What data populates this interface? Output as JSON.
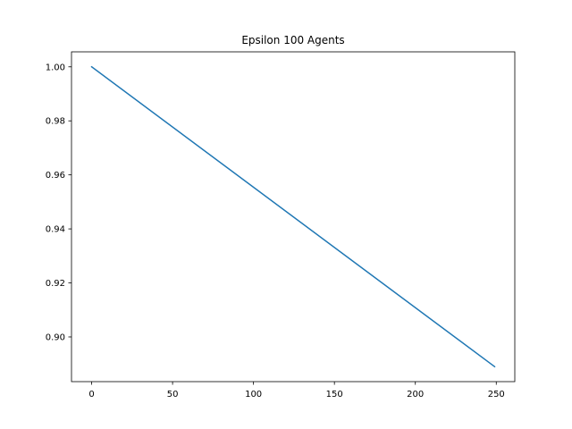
{
  "chart_data": {
    "type": "line",
    "title": "Epsilon 100 Agents",
    "xlabel": "",
    "ylabel": "",
    "xlim": [
      -12.45,
      261.45
    ],
    "ylim": [
      0.88345,
      1.00555
    ],
    "x_ticks": [
      0,
      50,
      100,
      150,
      200,
      250
    ],
    "y_ticks": [
      0.9,
      0.92,
      0.94,
      0.96,
      0.98,
      1.0
    ],
    "x_tick_labels": [
      "0",
      "50",
      "100",
      "150",
      "200",
      "250"
    ],
    "y_tick_labels": [
      "0.90",
      "0.92",
      "0.94",
      "0.96",
      "0.98",
      "1.00"
    ],
    "grid": false,
    "series": [
      {
        "color": "#1f77b4",
        "x": [
          0,
          249
        ],
        "y": [
          1.0,
          0.889
        ]
      }
    ]
  }
}
